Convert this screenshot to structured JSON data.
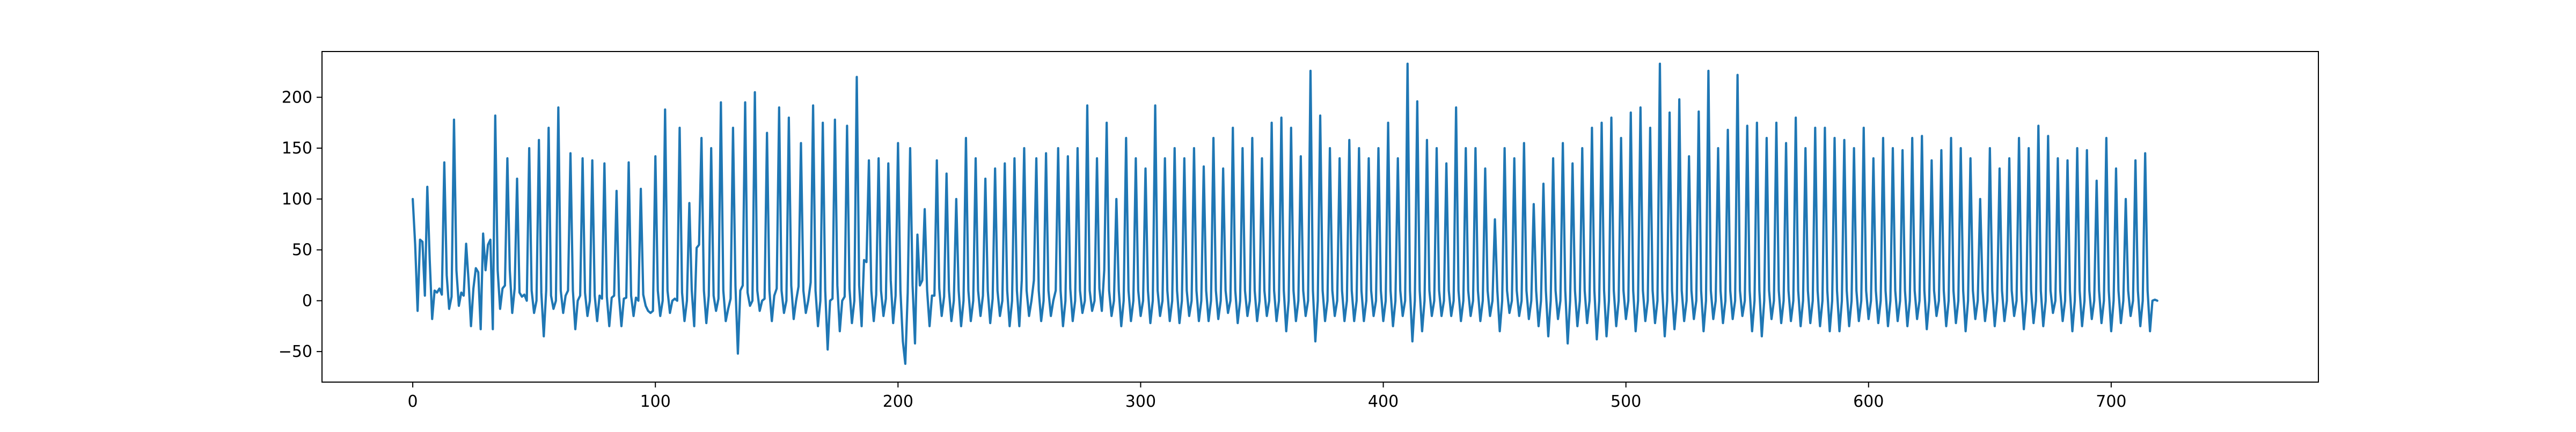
{
  "chart_data": {
    "type": "line",
    "title": "",
    "xlabel": "",
    "ylabel": "",
    "xlim": [
      -37.4,
      785.4
    ],
    "ylim": [
      -80,
      245
    ],
    "grid": false,
    "legend": "none",
    "colors": {
      "series": "#1f77b4",
      "axes": "#000000",
      "background": "#ffffff"
    },
    "x_ticks": [
      0,
      100,
      200,
      300,
      400,
      500,
      600,
      700
    ],
    "y_ticks": [
      -50,
      0,
      50,
      100,
      150,
      200
    ],
    "x_tick_labels": [
      "0",
      "100",
      "200",
      "300",
      "400",
      "500",
      "600",
      "700"
    ],
    "y_tick_labels": [
      "−50",
      "0",
      "50",
      "100",
      "150",
      "200"
    ],
    "x_start": 0,
    "x_step": 1,
    "series": [
      {
        "values": [
          100,
          55,
          -10,
          60,
          58,
          5,
          112,
          40,
          -18,
          10,
          8,
          12,
          6,
          136,
          25,
          -8,
          4,
          178,
          30,
          -5,
          8,
          5,
          56,
          20,
          -25,
          12,
          32,
          28,
          -28,
          66,
          30,
          55,
          60,
          -28,
          182,
          30,
          -8,
          12,
          15,
          140,
          30,
          -12,
          12,
          120,
          8,
          4,
          6,
          0,
          150,
          10,
          -12,
          0,
          158,
          8,
          -35,
          10,
          170,
          5,
          -8,
          0,
          190,
          10,
          -12,
          5,
          10,
          145,
          10,
          -28,
          0,
          5,
          140,
          8,
          -15,
          0,
          138,
          5,
          -20,
          5,
          2,
          135,
          4,
          -25,
          3,
          5,
          108,
          5,
          -25,
          2,
          3,
          136,
          5,
          -15,
          3,
          0,
          110,
          6,
          -5,
          -10,
          -12,
          -10,
          142,
          10,
          -15,
          0,
          188,
          10,
          -12,
          0,
          2,
          0,
          170,
          8,
          -20,
          0,
          96,
          10,
          -25,
          52,
          55,
          160,
          10,
          -22,
          5,
          150,
          5,
          -10,
          2,
          195,
          10,
          -20,
          -8,
          2,
          170,
          15,
          -52,
          10,
          15,
          195,
          8,
          -5,
          0,
          205,
          10,
          -10,
          0,
          2,
          165,
          10,
          -20,
          5,
          12,
          190,
          10,
          -12,
          0,
          180,
          15,
          -18,
          0,
          14,
          155,
          10,
          -12,
          0,
          18,
          192,
          10,
          -25,
          0,
          175,
          10,
          -48,
          0,
          2,
          178,
          15,
          -30,
          0,
          4,
          172,
          12,
          -22,
          0,
          220,
          15,
          -25,
          40,
          38,
          138,
          10,
          -20,
          6,
          140,
          10,
          -15,
          2,
          135,
          20,
          -22,
          5,
          155,
          10,
          -40,
          -62,
          8,
          150,
          15,
          -42,
          65,
          15,
          20,
          90,
          10,
          -25,
          5,
          5,
          138,
          12,
          -15,
          4,
          125,
          10,
          -20,
          0,
          100,
          10,
          -25,
          0,
          160,
          10,
          -20,
          0,
          140,
          10,
          -15,
          5,
          120,
          10,
          -22,
          2,
          130,
          10,
          -15,
          0,
          135,
          10,
          -25,
          0,
          140,
          10,
          -25,
          20,
          150,
          10,
          -15,
          0,
          20,
          140,
          10,
          -20,
          0,
          145,
          10,
          -15,
          0,
          10,
          150,
          10,
          -25,
          0,
          142,
          12,
          -20,
          0,
          150,
          10,
          -12,
          0,
          192,
          10,
          -10,
          0,
          140,
          12,
          -10,
          30,
          175,
          10,
          -15,
          0,
          100,
          10,
          -25,
          0,
          160,
          10,
          -20,
          0,
          140,
          10,
          -15,
          0,
          130,
          10,
          -22,
          0,
          192,
          10,
          -15,
          0,
          140,
          10,
          -20,
          0,
          150,
          10,
          -22,
          0,
          140,
          10,
          -15,
          0,
          150,
          10,
          -20,
          0,
          132,
          10,
          -20,
          0,
          160,
          10,
          -18,
          0,
          130,
          10,
          -12,
          0,
          170,
          10,
          -22,
          0,
          150,
          10,
          -15,
          0,
          160,
          10,
          -20,
          0,
          140,
          10,
          -15,
          0,
          175,
          10,
          -20,
          0,
          180,
          10,
          -30,
          0,
          170,
          10,
          -20,
          0,
          142,
          10,
          -15,
          0,
          226,
          10,
          -40,
          0,
          182,
          10,
          -20,
          0,
          150,
          10,
          -15,
          0,
          140,
          10,
          -20,
          0,
          158,
          10,
          -20,
          0,
          150,
          10,
          -20,
          0,
          140,
          10,
          -15,
          0,
          150,
          10,
          -20,
          0,
          175,
          10,
          -25,
          0,
          140,
          10,
          -15,
          0,
          233,
          10,
          -40,
          0,
          196,
          10,
          -30,
          0,
          158,
          10,
          -15,
          0,
          150,
          10,
          -15,
          0,
          135,
          10,
          -15,
          0,
          190,
          10,
          -20,
          0,
          150,
          10,
          -15,
          0,
          150,
          10,
          -20,
          0,
          130,
          10,
          -15,
          0,
          80,
          10,
          -30,
          0,
          150,
          10,
          -12,
          0,
          140,
          10,
          -15,
          0,
          155,
          10,
          -18,
          0,
          95,
          10,
          -25,
          0,
          115,
          10,
          -35,
          0,
          140,
          10,
          -18,
          0,
          155,
          10,
          -42,
          0,
          135,
          10,
          -25,
          0,
          150,
          10,
          -22,
          0,
          170,
          10,
          -38,
          0,
          175,
          10,
          -35,
          0,
          180,
          10,
          -25,
          0,
          160,
          10,
          -18,
          0,
          185,
          10,
          -30,
          0,
          190,
          10,
          -20,
          0,
          170,
          10,
          -22,
          0,
          233,
          10,
          -35,
          0,
          185,
          10,
          -28,
          0,
          198,
          10,
          -20,
          0,
          142,
          10,
          -18,
          0,
          186,
          10,
          -30,
          0,
          226,
          10,
          -18,
          0,
          150,
          10,
          -22,
          0,
          168,
          10,
          -18,
          0,
          222,
          10,
          -15,
          0,
          172,
          10,
          -30,
          0,
          175,
          10,
          -35,
          0,
          160,
          10,
          -18,
          0,
          175,
          10,
          -22,
          0,
          155,
          10,
          -20,
          0,
          180,
          10,
          -25,
          0,
          150,
          10,
          -22,
          0,
          170,
          10,
          -25,
          0,
          170,
          10,
          -30,
          0,
          160,
          10,
          -30,
          0,
          158,
          10,
          -25,
          0,
          150,
          10,
          -20,
          0,
          170,
          10,
          -18,
          0,
          140,
          10,
          -22,
          0,
          160,
          10,
          -25,
          0,
          150,
          10,
          -20,
          0,
          148,
          10,
          -25,
          0,
          160,
          10,
          -18,
          0,
          162,
          10,
          -28,
          0,
          138,
          10,
          -15,
          0,
          148,
          10,
          -25,
          0,
          160,
          10,
          -22,
          0,
          150,
          10,
          -30,
          0,
          140,
          10,
          -18,
          0,
          100,
          10,
          -20,
          0,
          150,
          10,
          -25,
          0,
          130,
          10,
          -20,
          0,
          140,
          10,
          -15,
          0,
          160,
          10,
          -28,
          0,
          150,
          10,
          -22,
          0,
          172,
          10,
          -25,
          0,
          162,
          10,
          -12,
          0,
          140,
          10,
          -20,
          0,
          138,
          10,
          -30,
          0,
          150,
          10,
          -25,
          0,
          148,
          10,
          -18,
          0,
          118,
          10,
          -22,
          0,
          160,
          10,
          -30,
          0,
          130,
          10,
          -22,
          0,
          100,
          10,
          -15,
          0,
          138,
          10,
          -25,
          0,
          145,
          10,
          -30,
          0,
          1,
          0
        ]
      }
    ]
  }
}
